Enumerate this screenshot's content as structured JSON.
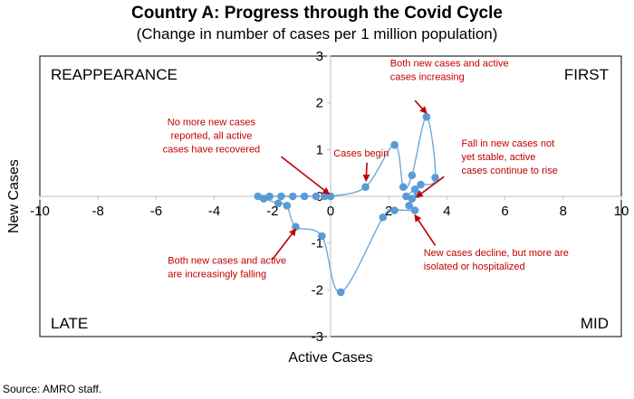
{
  "chart_data": {
    "type": "scatter",
    "title": "Country A: Progress through the Covid Cycle",
    "subtitle": "(Change in number of cases per 1 million population)",
    "xlabel": "Active Cases",
    "ylabel": "New Cases",
    "xlim": [
      -10,
      10
    ],
    "ylim": [
      -3,
      3
    ],
    "xticks": [
      -10,
      -8,
      -6,
      -4,
      -2,
      0,
      2,
      4,
      6,
      8,
      10
    ],
    "yticks": [
      -3,
      -2,
      -1,
      0,
      1,
      2,
      3
    ],
    "grid": false,
    "line_color": "#6fa8dc",
    "marker_color": "#5b9bd5",
    "annotation_color": "#c00000",
    "quadrants": {
      "top_left": "REAPPEARANCE",
      "top_right": "FIRST",
      "bottom_left": "LATE",
      "bottom_right": "MID"
    },
    "points": [
      {
        "x": 0.0,
        "y": 0.0
      },
      {
        "x": 1.2,
        "y": 0.2
      },
      {
        "x": 2.2,
        "y": 1.1
      },
      {
        "x": 2.5,
        "y": 0.2
      },
      {
        "x": 2.8,
        "y": 0.45
      },
      {
        "x": 3.3,
        "y": 1.7
      },
      {
        "x": 3.6,
        "y": 0.4
      },
      {
        "x": 3.1,
        "y": 0.25
      },
      {
        "x": 2.9,
        "y": 0.15
      },
      {
        "x": 2.6,
        "y": 0.0
      },
      {
        "x": 2.8,
        "y": -0.05
      },
      {
        "x": 3.0,
        "y": 0.05
      },
      {
        "x": 2.7,
        "y": -0.2
      },
      {
        "x": 2.9,
        "y": -0.3
      },
      {
        "x": 2.2,
        "y": -0.3
      },
      {
        "x": 1.8,
        "y": -0.45
      },
      {
        "x": 0.35,
        "y": -2.05
      },
      {
        "x": -0.3,
        "y": -0.85
      },
      {
        "x": -1.2,
        "y": -0.65
      },
      {
        "x": -1.5,
        "y": -0.2
      },
      {
        "x": -1.8,
        "y": -0.15
      },
      {
        "x": -2.3,
        "y": -0.05
      },
      {
        "x": -2.5,
        "y": 0.0
      },
      {
        "x": -2.1,
        "y": 0.0
      },
      {
        "x": -1.7,
        "y": 0.0
      },
      {
        "x": -1.3,
        "y": 0.0
      },
      {
        "x": -0.9,
        "y": 0.0
      },
      {
        "x": -0.5,
        "y": 0.0
      },
      {
        "x": -0.2,
        "y": 0.0
      },
      {
        "x": 0.0,
        "y": 0.0
      }
    ],
    "annotations": [
      {
        "lines": [
          "Both new cases and active",
          "cases increasing"
        ],
        "anchor": "start",
        "tx": 2.05,
        "ty": 2.78,
        "ax": [
          2.9,
          2.05
        ],
        "ah": [
          3.3,
          1.78
        ]
      },
      {
        "lines": [
          "No more new cases",
          "reported, all active",
          "cases have recovered"
        ],
        "anchor": "middle",
        "tx": -4.1,
        "ty": 1.52,
        "ax": [
          -1.7,
          0.85
        ],
        "ah": [
          -0.05,
          0.05
        ]
      },
      {
        "lines": [
          "Cases begin"
        ],
        "anchor": "start",
        "tx": 0.1,
        "ty": 0.85,
        "ax": [
          1.25,
          0.72
        ],
        "ah": [
          1.22,
          0.33
        ]
      },
      {
        "lines": [
          "Fall in new cases not",
          "yet stable, active",
          "cases continue to rise"
        ],
        "anchor": "start",
        "tx": 4.5,
        "ty": 1.06,
        "ax": [
          3.9,
          0.42
        ],
        "ah": [
          2.95,
          -0.02
        ]
      },
      {
        "lines": [
          "New cases decline, but more are",
          "isolated or hospitalized"
        ],
        "anchor": "start",
        "tx": 3.2,
        "ty": -1.28,
        "ax": [
          3.6,
          -1.05
        ],
        "ah": [
          2.9,
          -0.4
        ]
      },
      {
        "lines": [
          "Both new cases and active",
          "are increasingly falling"
        ],
        "anchor": "start",
        "tx": -5.6,
        "ty": -1.44,
        "ax": [
          -2.0,
          -1.35
        ],
        "ah": [
          -1.2,
          -0.7
        ]
      }
    ]
  },
  "source": "Source: AMRO staff."
}
